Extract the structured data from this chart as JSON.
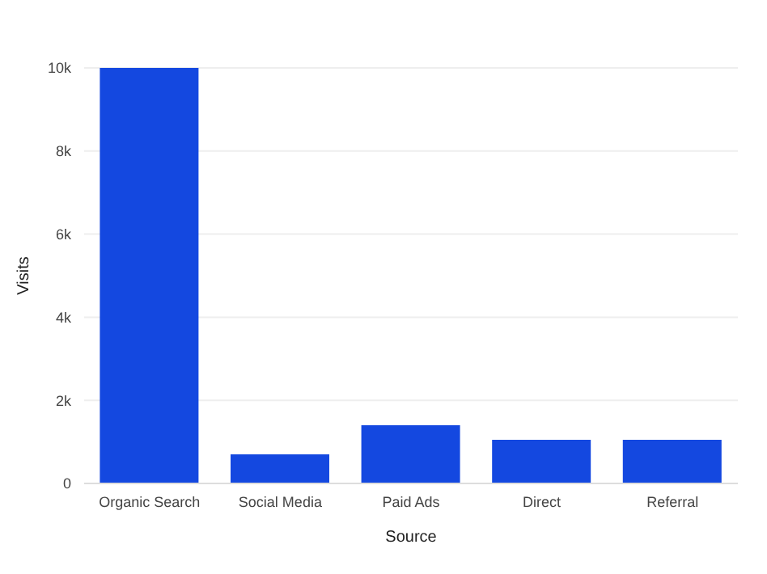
{
  "chart_data": {
    "type": "bar",
    "xlabel": "Source",
    "ylabel": "Visits",
    "categories": [
      "Organic Search",
      "Social Media",
      "Paid Ads",
      "Direct",
      "Referral"
    ],
    "values": [
      10000,
      700,
      1400,
      1050,
      1050
    ],
    "color": "#1448e0",
    "ylim": [
      0,
      10000
    ],
    "yticks": [
      {
        "value": 0,
        "label": "0"
      },
      {
        "value": 2000,
        "label": "2k"
      },
      {
        "value": 4000,
        "label": "4k"
      },
      {
        "value": 6000,
        "label": "6k"
      },
      {
        "value": 8000,
        "label": "8k"
      },
      {
        "value": 10000,
        "label": "10k"
      }
    ],
    "grid": "y"
  }
}
